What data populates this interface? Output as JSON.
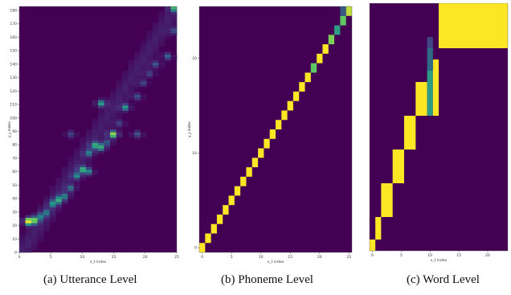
{
  "colors": {
    "background": "#440154",
    "low": "#46337e",
    "mid": "#21918c",
    "high": "#5ec962",
    "top": "#fde725"
  },
  "chart_data": [
    {
      "type": "heatmap",
      "caption": "(a) Utterance Level",
      "xlabel": "x_t index",
      "ylabel": "y_j index",
      "xlim": [
        0,
        25
      ],
      "ylim": [
        0,
        183
      ],
      "xticks": [
        0,
        5,
        10,
        15,
        20,
        25
      ],
      "yticks": [
        0,
        10,
        20,
        30,
        40,
        50,
        60,
        70,
        80,
        90,
        100,
        110,
        120,
        130,
        140,
        150,
        160,
        170,
        180
      ],
      "peaks": [
        {
          "x": 1,
          "y": 24,
          "v": 0.6
        },
        {
          "x": 2,
          "y": 24,
          "v": 0.55
        },
        {
          "x": 1,
          "y": 22,
          "v": 0.35
        },
        {
          "x": 3,
          "y": 27,
          "v": 0.3
        },
        {
          "x": 4,
          "y": 30,
          "v": 0.28
        },
        {
          "x": 5,
          "y": 36,
          "v": 0.35
        },
        {
          "x": 6,
          "y": 39,
          "v": 0.45
        },
        {
          "x": 7,
          "y": 42,
          "v": 0.35
        },
        {
          "x": 8,
          "y": 48,
          "v": 0.35
        },
        {
          "x": 9,
          "y": 57,
          "v": 0.4
        },
        {
          "x": 10,
          "y": 62,
          "v": 0.5
        },
        {
          "x": 11,
          "y": 60,
          "v": 0.4
        },
        {
          "x": 11,
          "y": 74,
          "v": 0.35
        },
        {
          "x": 12,
          "y": 80,
          "v": 0.45
        },
        {
          "x": 13,
          "y": 78,
          "v": 0.5
        },
        {
          "x": 14,
          "y": 82,
          "v": 0.35
        },
        {
          "x": 15,
          "y": 88,
          "v": 0.85
        },
        {
          "x": 13,
          "y": 111,
          "v": 0.55
        },
        {
          "x": 16,
          "y": 96,
          "v": 0.3
        },
        {
          "x": 17,
          "y": 108,
          "v": 0.5
        },
        {
          "x": 19,
          "y": 116,
          "v": 0.35
        },
        {
          "x": 20,
          "y": 126,
          "v": 0.3
        },
        {
          "x": 21,
          "y": 133,
          "v": 0.3
        },
        {
          "x": 22,
          "y": 140,
          "v": 0.35
        },
        {
          "x": 24,
          "y": 146,
          "v": 0.4
        },
        {
          "x": 25,
          "y": 165,
          "v": 0.3
        },
        {
          "x": 25,
          "y": 182,
          "v": 0.5
        },
        {
          "x": 19,
          "y": 88,
          "v": 0.35
        },
        {
          "x": 8,
          "y": 88,
          "v": 0.3
        }
      ]
    },
    {
      "type": "heatmap",
      "caption": "(b) Phoneme Level",
      "xlabel": "x_t index",
      "ylabel": "y_j index",
      "xlim": [
        0,
        25
      ],
      "ylim": [
        0,
        25
      ],
      "xticks": [
        0,
        5,
        10,
        15,
        20,
        25
      ],
      "yticks": [
        0,
        10,
        20
      ],
      "cells": [
        {
          "x": 0,
          "y": 0,
          "v": 1
        },
        {
          "x": 1,
          "y": 1,
          "v": 1
        },
        {
          "x": 2,
          "y": 2,
          "v": 1
        },
        {
          "x": 3,
          "y": 3,
          "v": 1
        },
        {
          "x": 4,
          "y": 4,
          "v": 1
        },
        {
          "x": 5,
          "y": 5,
          "v": 1
        },
        {
          "x": 6,
          "y": 6,
          "v": 1
        },
        {
          "x": 7,
          "y": 7,
          "v": 1
        },
        {
          "x": 8,
          "y": 8,
          "v": 1
        },
        {
          "x": 9,
          "y": 9,
          "v": 1
        },
        {
          "x": 10,
          "y": 10,
          "v": 1
        },
        {
          "x": 11,
          "y": 11,
          "v": 1
        },
        {
          "x": 12,
          "y": 12,
          "v": 1
        },
        {
          "x": 13,
          "y": 13,
          "v": 1
        },
        {
          "x": 14,
          "y": 14,
          "v": 1
        },
        {
          "x": 15,
          "y": 15,
          "v": 1
        },
        {
          "x": 16,
          "y": 16,
          "v": 1
        },
        {
          "x": 17,
          "y": 17,
          "v": 1
        },
        {
          "x": 18,
          "y": 18,
          "v": 1
        },
        {
          "x": 19,
          "y": 19,
          "v": 0.75
        },
        {
          "x": 20,
          "y": 20,
          "v": 1
        },
        {
          "x": 21,
          "y": 21,
          "v": 1
        },
        {
          "x": 22,
          "y": 22,
          "v": 0.8
        },
        {
          "x": 23,
          "y": 23,
          "v": 0.55
        },
        {
          "x": 24,
          "y": 24,
          "v": 0.75
        },
        {
          "x": 25,
          "y": 25,
          "v": 0.9
        },
        {
          "x": 24,
          "y": 25,
          "v": 0.35
        }
      ]
    },
    {
      "type": "heatmap",
      "caption": "(c) Word Level",
      "xlabel": "x_t index",
      "ylabel": "",
      "xlim": [
        0,
        24
      ],
      "ylim": [
        0,
        22
      ],
      "xticks": [
        0,
        5,
        10,
        15,
        20
      ],
      "yticks": [],
      "blocks": [
        {
          "x0": 0,
          "x1": 1,
          "y0": 0,
          "y1": 1,
          "v": 1
        },
        {
          "x0": 1,
          "x1": 2,
          "y0": 1,
          "y1": 3,
          "v": 1
        },
        {
          "x0": 2,
          "x1": 4,
          "y0": 3,
          "y1": 6,
          "v": 1
        },
        {
          "x0": 4,
          "x1": 6,
          "y0": 6,
          "y1": 9,
          "v": 1
        },
        {
          "x0": 6,
          "x1": 8,
          "y0": 9,
          "y1": 12,
          "v": 1
        },
        {
          "x0": 8,
          "x1": 10,
          "y0": 12,
          "y1": 15,
          "v": 1
        },
        {
          "x0": 10,
          "x1": 11,
          "y0": 12,
          "y1": 16,
          "v": 0.55
        },
        {
          "x0": 11,
          "x1": 12,
          "y0": 12,
          "y1": 17,
          "v": 1
        },
        {
          "x0": 10,
          "x1": 11,
          "y0": 16,
          "y1": 18,
          "v": 0.4
        },
        {
          "x0": 10,
          "x1": 11,
          "y0": 18,
          "y1": 19,
          "v": 0.3
        },
        {
          "x0": 12,
          "x1": 24,
          "y0": 18,
          "y1": 22,
          "v": 1
        }
      ]
    }
  ]
}
